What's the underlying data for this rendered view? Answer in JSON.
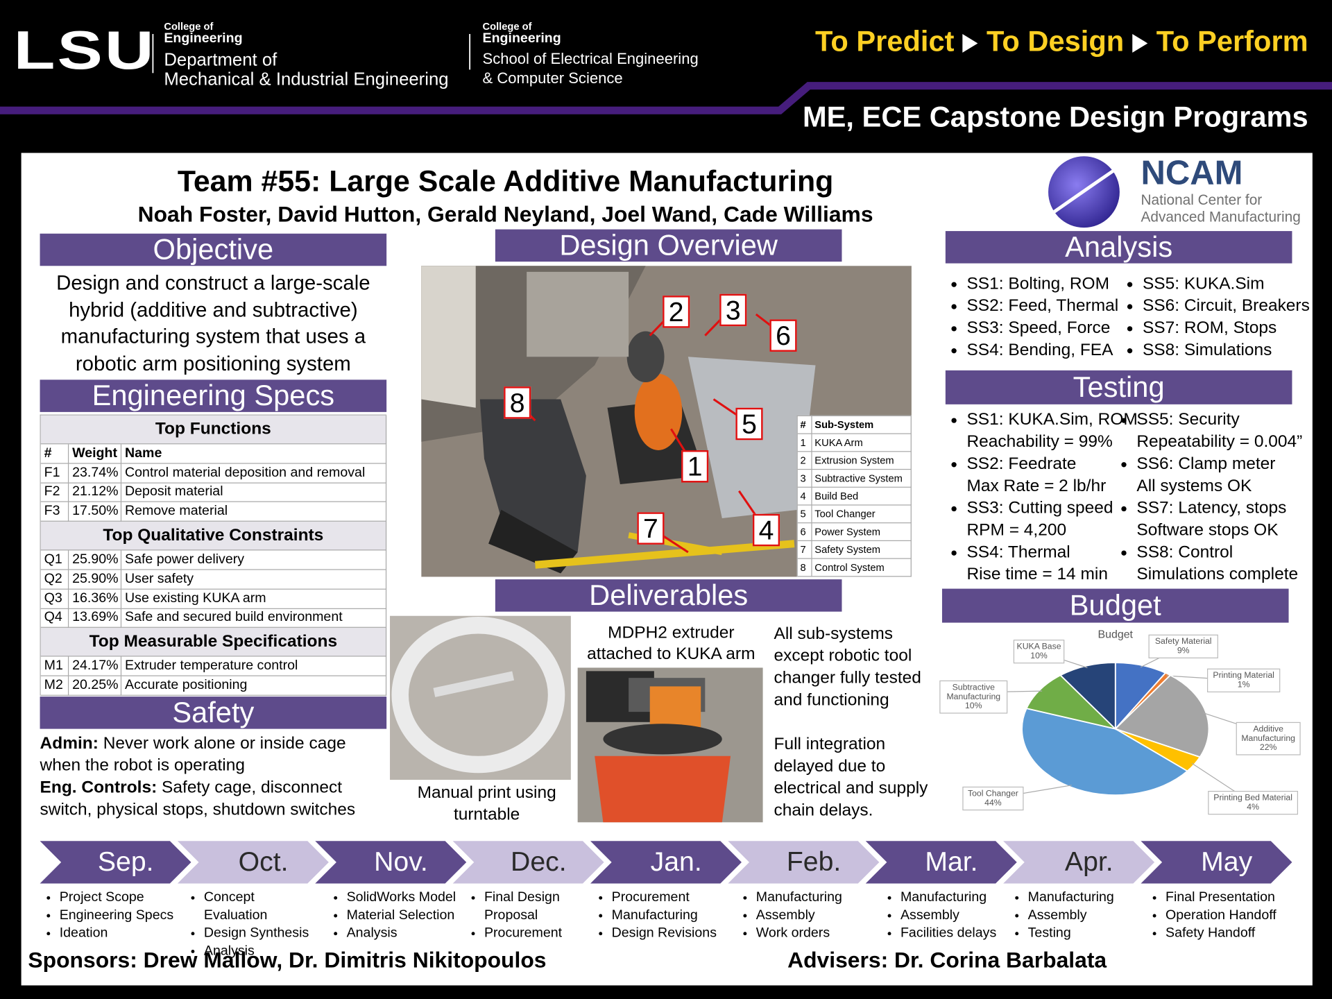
{
  "header": {
    "logo": "LSU",
    "units": [
      {
        "college": "College of",
        "engineering": "Engineering",
        "lines": [
          "Department of",
          "Mechanical & Industrial Engineering"
        ]
      },
      {
        "college": "College of",
        "engineering": "Engineering",
        "lines": [
          "School of Electrical Engineering",
          "& Computer Science"
        ]
      }
    ],
    "tagline": [
      "To Predict",
      "To Design",
      "To Perform"
    ],
    "program": "ME, ECE Capstone Design Programs"
  },
  "title": "Team #55: Large Scale Additive Manufacturing",
  "authors": "Noah Foster, David Hutton, Gerald Neyland, Joel Wand, Cade Williams",
  "sponsor_logo": {
    "name": "NCAM",
    "lines": [
      "National Center for",
      "Advanced Manufacturing"
    ]
  },
  "objective": {
    "heading": "Objective",
    "text": "Design and construct a large-scale hybrid (additive and subtractive) manufacturing system that uses a robotic arm positioning system"
  },
  "specs": {
    "heading": "Engineering Specs",
    "columns": [
      "#",
      "Weight",
      "Name"
    ],
    "groups": [
      {
        "title": "Top Functions",
        "rows": [
          [
            "F1",
            "23.74%",
            "Control material deposition and removal"
          ],
          [
            "F2",
            "21.12%",
            "Deposit material"
          ],
          [
            "F3",
            "17.50%",
            "Remove material"
          ]
        ]
      },
      {
        "title": "Top Qualitative Constraints",
        "rows": [
          [
            "Q1",
            "25.90%",
            "Safe power delivery"
          ],
          [
            "Q2",
            "25.90%",
            "User safety"
          ],
          [
            "Q3",
            "16.36%",
            "Use existing KUKA arm"
          ],
          [
            "Q4",
            "13.69%",
            "Safe and secured build environment"
          ]
        ]
      },
      {
        "title": "Top Measurable Specifications",
        "rows": [
          [
            "M1",
            "24.17%",
            "Extruder temperature control"
          ],
          [
            "M2",
            "20.25%",
            "Accurate positioning"
          ]
        ]
      }
    ]
  },
  "safety": {
    "heading": "Safety",
    "items": [
      {
        "label": "Admin:",
        "text": "Never work alone or inside cage when the robot is operating"
      },
      {
        "label": "Eng. Controls:",
        "text": "Safety cage, disconnect switch, physical stops, shutdown switches"
      }
    ]
  },
  "design": {
    "heading": "Design Overview",
    "callouts": [
      "1",
      "2",
      "3",
      "4",
      "5",
      "6",
      "7",
      "8"
    ],
    "legend": {
      "columns": [
        "#",
        "Sub-System"
      ],
      "rows": [
        [
          "1",
          "KUKA Arm"
        ],
        [
          "2",
          "Extrusion System"
        ],
        [
          "3",
          "Subtractive System"
        ],
        [
          "4",
          "Build Bed"
        ],
        [
          "5",
          "Tool Changer"
        ],
        [
          "6",
          "Power System"
        ],
        [
          "7",
          "Safety System"
        ],
        [
          "8",
          "Control System"
        ]
      ]
    }
  },
  "deliverables": {
    "heading": "Deliverables",
    "captions": [
      "Manual print using turntable",
      "MDPH2 extruder attached to KUKA arm"
    ],
    "notes": [
      "All sub-systems except robotic tool changer fully tested and functioning",
      "Full integration delayed due to electrical and supply chain delays."
    ]
  },
  "analysis": {
    "heading": "Analysis",
    "items": [
      "SS1: Bolting, ROM",
      "SS2: Feed, Thermal",
      "SS3: Speed, Force",
      "SS4: Bending, FEA",
      "SS5: KUKA.Sim",
      "SS6: Circuit, Breakers",
      "SS7: ROM, Stops",
      "SS8: Simulations"
    ]
  },
  "testing": {
    "heading": "Testing",
    "items": [
      {
        "title": "SS1: KUKA.Sim, ROM",
        "detail": "Reachability = 99%"
      },
      {
        "title": "SS2: Feedrate",
        "detail": "Max Rate = 2 lb/hr"
      },
      {
        "title": "SS3: Cutting speed",
        "detail": "RPM = 4,200"
      },
      {
        "title": "SS4: Thermal",
        "detail": "Rise time = 14 min"
      },
      {
        "title": "SS5: Security",
        "detail": "Repeatability = 0.004”"
      },
      {
        "title": "SS6: Clamp meter",
        "detail": "All systems OK"
      },
      {
        "title": "SS7: Latency, stops",
        "detail": "Software stops OK"
      },
      {
        "title": "SS8: Control",
        "detail": "Simulations complete"
      }
    ]
  },
  "budget": {
    "heading": "Budget"
  },
  "chart_data": {
    "type": "pie",
    "title": "Budget",
    "categories": [
      "Safety Material",
      "Printing Material",
      "Additive Manufacturing",
      "Printing Bed Material",
      "Tool Changer",
      "Subtractive Manufacturing",
      "KUKA Base"
    ],
    "values": [
      9,
      1,
      22,
      4,
      44,
      10,
      10
    ],
    "value_labels": [
      "9%",
      "1%",
      "22%",
      "4%",
      "44%",
      "10%",
      "10%"
    ],
    "colors": [
      "#4472c4",
      "#ed7d31",
      "#a5a5a5",
      "#ffc000",
      "#5b9bd5",
      "#70ad47",
      "#264478"
    ]
  },
  "timeline": [
    {
      "name": "Sep.",
      "items": [
        "Project Scope",
        "Engineering Specs",
        "Ideation"
      ]
    },
    {
      "name": "Oct.",
      "items": [
        "Concept Evaluation",
        "Design Synthesis",
        "Analysis"
      ]
    },
    {
      "name": "Nov.",
      "items": [
        "SolidWorks Model",
        "Material Selection",
        "Analysis"
      ]
    },
    {
      "name": "Dec.",
      "items": [
        "Final Design Proposal",
        "Procurement"
      ]
    },
    {
      "name": "Jan.",
      "items": [
        "Procurement",
        "Manufacturing",
        "Design Revisions"
      ]
    },
    {
      "name": "Feb.",
      "items": [
        "Manufacturing",
        "Assembly",
        "Work orders"
      ]
    },
    {
      "name": "Mar.",
      "items": [
        "Manufacturing",
        "Assembly",
        "Facilities delays"
      ]
    },
    {
      "name": "Apr.",
      "items": [
        "Manufacturing",
        "Assembly",
        "Testing"
      ]
    },
    {
      "name": "May",
      "items": [
        "Final Presentation",
        "Operation Handoff",
        "Safety Handoff"
      ]
    }
  ],
  "footer": {
    "sponsors": "Sponsors: Drew Mallow, Dr. Dimitris Nikitopoulos",
    "advisers": "Advisers: Dr. Corina Barbalata"
  }
}
